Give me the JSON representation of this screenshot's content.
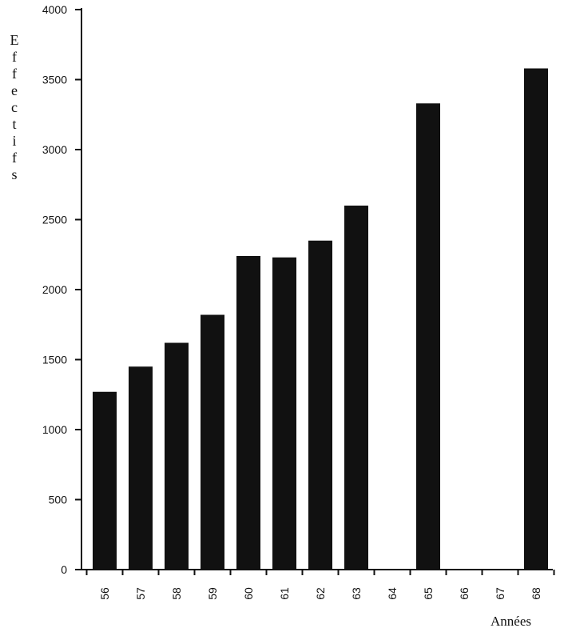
{
  "chart_data": {
    "type": "bar",
    "ylabel": "Effectifs",
    "xlabel": "Années",
    "ylim": [
      0,
      4000
    ],
    "yticks": [
      0,
      500,
      1000,
      1500,
      2000,
      2500,
      3000,
      3500,
      4000
    ],
    "ytick_labels": [
      "0",
      "500",
      "1000",
      "1500",
      "2000",
      "2500",
      "3000",
      "3500",
      "4000"
    ],
    "categories": [
      "56",
      "57",
      "58",
      "59",
      "60",
      "61",
      "62",
      "63",
      "64",
      "65",
      "66",
      "67",
      "68"
    ],
    "values": [
      1270,
      1450,
      1620,
      1820,
      2240,
      2230,
      2350,
      2600,
      null,
      3330,
      null,
      null,
      3580
    ],
    "grid": false,
    "bar_color": "#111111"
  }
}
